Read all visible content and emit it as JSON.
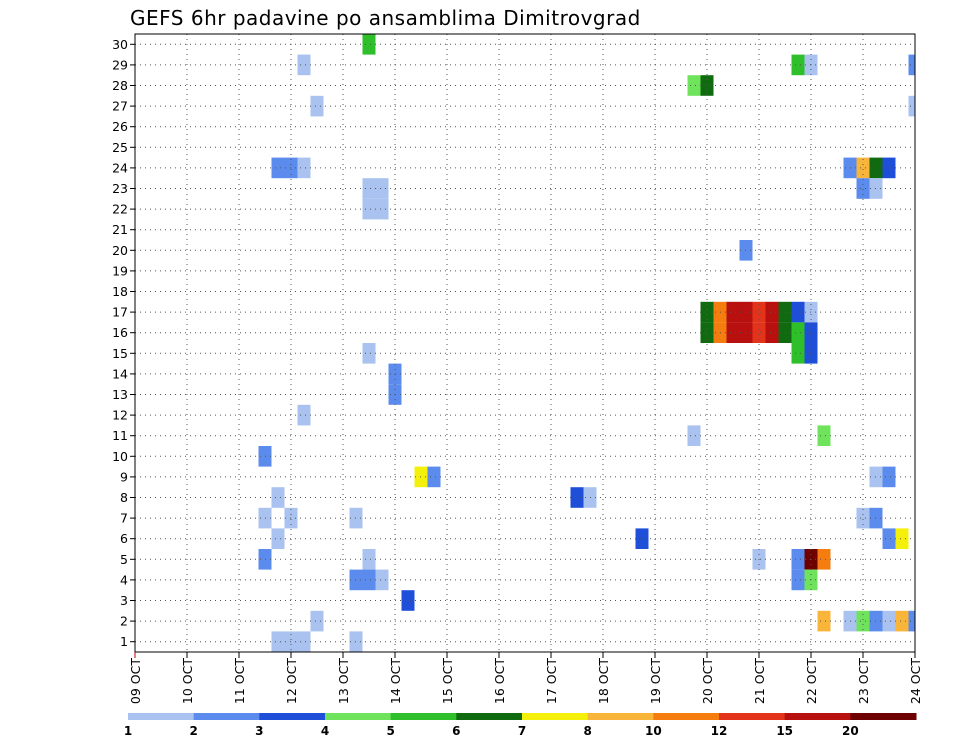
{
  "chart_data": {
    "type": "heatmap",
    "title": "GEFS 6hr padavine po ansamblima Dimitrovgrad",
    "xlabel": "",
    "ylabel": "",
    "x_tick_labels": [
      "09 OCT",
      "10 OCT",
      "11 OCT",
      "12 OCT",
      "13 OCT",
      "14 OCT",
      "15 OCT",
      "16 OCT",
      "17 OCT",
      "18 OCT",
      "19 OCT",
      "20 OCT",
      "21 OCT",
      "22 OCT",
      "23 OCT",
      "24 OCT"
    ],
    "y_tick_labels": [
      "1",
      "2",
      "3",
      "4",
      "5",
      "6",
      "7",
      "8",
      "9",
      "10",
      "11",
      "12",
      "13",
      "14",
      "15",
      "16",
      "17",
      "18",
      "19",
      "20",
      "21",
      "22",
      "23",
      "24",
      "25",
      "26",
      "27",
      "28",
      "29",
      "30"
    ],
    "x_range_hours": [
      0,
      360
    ],
    "y_range": [
      0.5,
      30.5
    ],
    "step_hours": 6,
    "grid": true,
    "colorbar": {
      "labels": [
        "1",
        "2",
        "3",
        "4",
        "5",
        "6",
        "7",
        "8",
        "10",
        "12",
        "15",
        "20"
      ],
      "colors": [
        "#a9c2f0",
        "#5b8ced",
        "#1f4fd9",
        "#6fe35c",
        "#2fbf2a",
        "#106a10",
        "#f5f00a",
        "#f9b43a",
        "#f57d10",
        "#e3341b",
        "#b80f0f",
        "#6e0000"
      ]
    },
    "cells": [
      {
        "member": 30,
        "hour": 108,
        "level": 5
      },
      {
        "member": 29,
        "hour": 78,
        "level": 1
      },
      {
        "member": 29,
        "hour": 306,
        "level": 5
      },
      {
        "member": 29,
        "hour": 312,
        "level": 1
      },
      {
        "member": 29,
        "hour": 360,
        "level": 2
      },
      {
        "member": 28,
        "hour": 258,
        "level": 4
      },
      {
        "member": 28,
        "hour": 264,
        "level": 6
      },
      {
        "member": 27,
        "hour": 84,
        "level": 1
      },
      {
        "member": 27,
        "hour": 360,
        "level": 1
      },
      {
        "member": 24,
        "hour": 66,
        "level": 2
      },
      {
        "member": 24,
        "hour": 72,
        "level": 2
      },
      {
        "member": 24,
        "hour": 78,
        "level": 1
      },
      {
        "member": 24,
        "hour": 330,
        "level": 2
      },
      {
        "member": 24,
        "hour": 336,
        "level": 8
      },
      {
        "member": 24,
        "hour": 342,
        "level": 6
      },
      {
        "member": 24,
        "hour": 348,
        "level": 3
      },
      {
        "member": 23,
        "hour": 108,
        "level": 1
      },
      {
        "member": 23,
        "hour": 114,
        "level": 1
      },
      {
        "member": 23,
        "hour": 336,
        "level": 2
      },
      {
        "member": 23,
        "hour": 342,
        "level": 1
      },
      {
        "member": 22,
        "hour": 108,
        "level": 1
      },
      {
        "member": 22,
        "hour": 114,
        "level": 1
      },
      {
        "member": 20,
        "hour": 282,
        "level": 2
      },
      {
        "member": 17,
        "hour": 264,
        "level": 6
      },
      {
        "member": 17,
        "hour": 270,
        "level": 9
      },
      {
        "member": 17,
        "hour": 276,
        "level": 11
      },
      {
        "member": 17,
        "hour": 282,
        "level": 11
      },
      {
        "member": 17,
        "hour": 288,
        "level": 10
      },
      {
        "member": 17,
        "hour": 294,
        "level": 11
      },
      {
        "member": 17,
        "hour": 300,
        "level": 6
      },
      {
        "member": 17,
        "hour": 306,
        "level": 3
      },
      {
        "member": 17,
        "hour": 312,
        "level": 1
      },
      {
        "member": 16,
        "hour": 264,
        "level": 6
      },
      {
        "member": 16,
        "hour": 270,
        "level": 9
      },
      {
        "member": 16,
        "hour": 276,
        "level": 11
      },
      {
        "member": 16,
        "hour": 282,
        "level": 11
      },
      {
        "member": 16,
        "hour": 288,
        "level": 10
      },
      {
        "member": 16,
        "hour": 294,
        "level": 11
      },
      {
        "member": 16,
        "hour": 300,
        "level": 6
      },
      {
        "member": 16,
        "hour": 306,
        "level": 5
      },
      {
        "member": 16,
        "hour": 312,
        "level": 3
      },
      {
        "member": 15,
        "hour": 108,
        "level": 1
      },
      {
        "member": 15,
        "hour": 306,
        "level": 5
      },
      {
        "member": 15,
        "hour": 312,
        "level": 3
      },
      {
        "member": 14,
        "hour": 120,
        "level": 2
      },
      {
        "member": 13,
        "hour": 120,
        "level": 2
      },
      {
        "member": 12,
        "hour": 78,
        "level": 1
      },
      {
        "member": 11,
        "hour": 258,
        "level": 1
      },
      {
        "member": 11,
        "hour": 318,
        "level": 4
      },
      {
        "member": 10,
        "hour": 60,
        "level": 2
      },
      {
        "member": 9,
        "hour": 132,
        "level": 7
      },
      {
        "member": 9,
        "hour": 138,
        "level": 2
      },
      {
        "member": 9,
        "hour": 342,
        "level": 1
      },
      {
        "member": 9,
        "hour": 348,
        "level": 2
      },
      {
        "member": 8,
        "hour": 66,
        "level": 1
      },
      {
        "member": 8,
        "hour": 204,
        "level": 3
      },
      {
        "member": 8,
        "hour": 210,
        "level": 1
      },
      {
        "member": 7,
        "hour": 60,
        "level": 1
      },
      {
        "member": 7,
        "hour": 72,
        "level": 1
      },
      {
        "member": 7,
        "hour": 102,
        "level": 1
      },
      {
        "member": 7,
        "hour": 336,
        "level": 1
      },
      {
        "member": 7,
        "hour": 342,
        "level": 2
      },
      {
        "member": 6,
        "hour": 66,
        "level": 1
      },
      {
        "member": 6,
        "hour": 234,
        "level": 3
      },
      {
        "member": 6,
        "hour": 348,
        "level": 2
      },
      {
        "member": 6,
        "hour": 354,
        "level": 7
      },
      {
        "member": 5,
        "hour": 60,
        "level": 2
      },
      {
        "member": 5,
        "hour": 108,
        "level": 1
      },
      {
        "member": 5,
        "hour": 288,
        "level": 1
      },
      {
        "member": 5,
        "hour": 306,
        "level": 2
      },
      {
        "member": 5,
        "hour": 312,
        "level": 12
      },
      {
        "member": 5,
        "hour": 318,
        "level": 9
      },
      {
        "member": 4,
        "hour": 102,
        "level": 2
      },
      {
        "member": 4,
        "hour": 108,
        "level": 2
      },
      {
        "member": 4,
        "hour": 114,
        "level": 1
      },
      {
        "member": 4,
        "hour": 306,
        "level": 2
      },
      {
        "member": 4,
        "hour": 312,
        "level": 4
      },
      {
        "member": 3,
        "hour": 126,
        "level": 3
      },
      {
        "member": 2,
        "hour": 84,
        "level": 1
      },
      {
        "member": 2,
        "hour": 318,
        "level": 8
      },
      {
        "member": 2,
        "hour": 330,
        "level": 1
      },
      {
        "member": 2,
        "hour": 336,
        "level": 4
      },
      {
        "member": 2,
        "hour": 342,
        "level": 2
      },
      {
        "member": 2,
        "hour": 348,
        "level": 1
      },
      {
        "member": 2,
        "hour": 354,
        "level": 8
      },
      {
        "member": 2,
        "hour": 360,
        "level": 2
      },
      {
        "member": 1,
        "hour": 66,
        "level": 1
      },
      {
        "member": 1,
        "hour": 72,
        "level": 1
      },
      {
        "member": 1,
        "hour": 78,
        "level": 1
      },
      {
        "member": 1,
        "hour": 102,
        "level": 1
      }
    ]
  }
}
